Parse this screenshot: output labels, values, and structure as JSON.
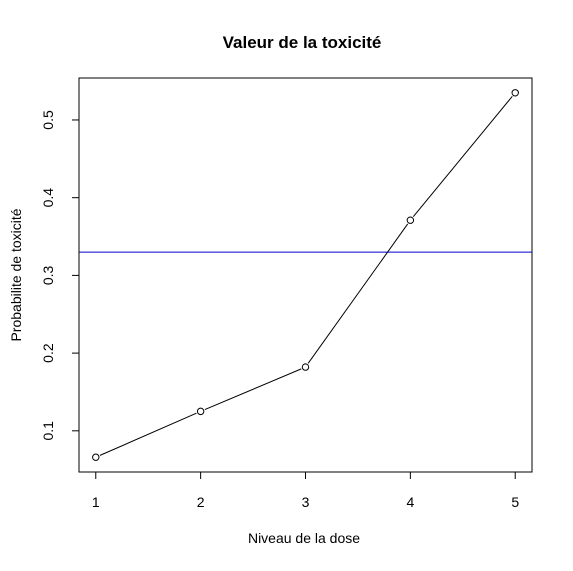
{
  "chart_data": {
    "type": "line",
    "title": "Valeur de la toxicité",
    "xlabel": "Niveau de la dose",
    "ylabel": "Probabilite de toxicité",
    "x": [
      1,
      2,
      3,
      4,
      5
    ],
    "y": [
      0.066,
      0.125,
      0.182,
      0.371,
      0.535
    ],
    "x_ticks": [
      "1",
      "2",
      "3",
      "4",
      "5"
    ],
    "y_ticks": [
      "0.1",
      "0.2",
      "0.3",
      "0.4",
      "0.5"
    ],
    "xlim": [
      0.84,
      5.16
    ],
    "ylim": [
      0.047,
      0.554
    ],
    "marker": "open-circle",
    "line_color": "#000000",
    "reference_line": {
      "orientation": "horizontal",
      "y": 0.33,
      "color": "#0000cc"
    },
    "grid": false,
    "legend": "none"
  }
}
